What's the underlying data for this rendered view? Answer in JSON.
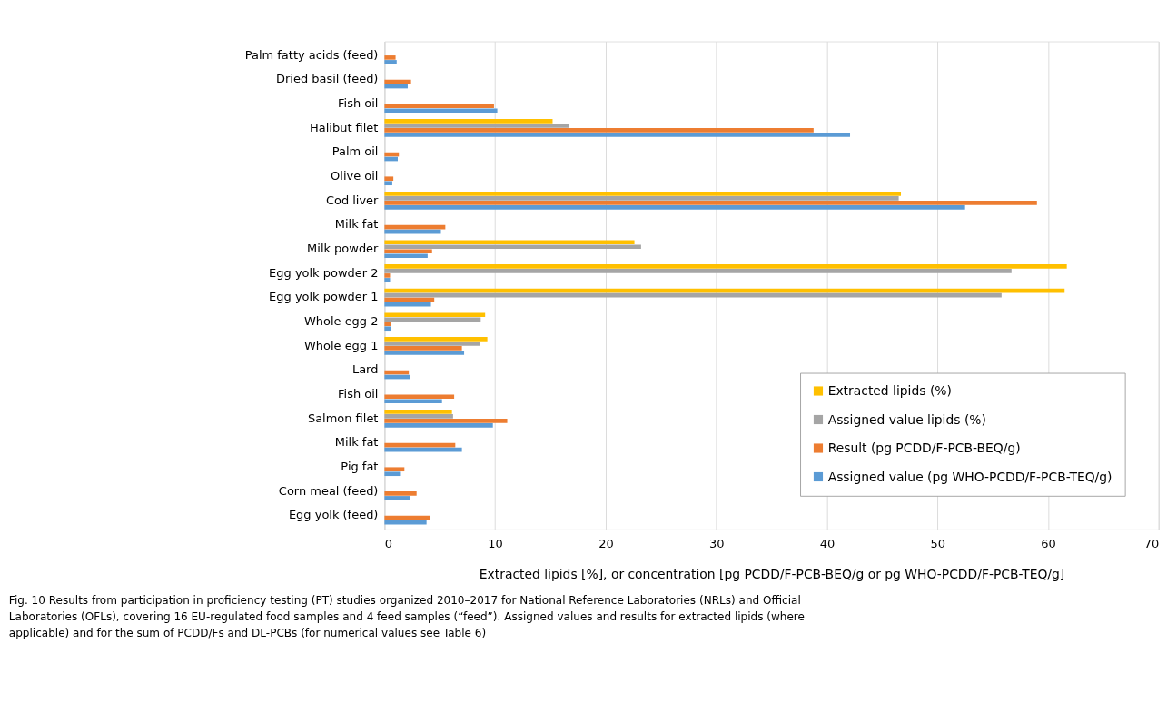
{
  "chart_data": {
    "type": "bar",
    "orientation": "horizontal",
    "categories": [
      "Palm fatty acids (feed)",
      "Dried basil (feed)",
      "Fish oil",
      "Halibut filet",
      "Palm oil",
      "Olive oil",
      "Cod liver",
      "Milk fat",
      "Milk powder",
      "Egg yolk powder 2",
      "Egg yolk powder 1",
      "Whole egg 2",
      "Whole egg 1",
      "Lard",
      "Fish oil",
      "Salmon filet",
      "Milk fat",
      "Pig fat",
      "Corn meal (feed)",
      "Egg yolk (feed)"
    ],
    "series": [
      {
        "name": "Extracted lipids (%)",
        "color": "#ffc000",
        "values": [
          null,
          null,
          null,
          15.2,
          null,
          null,
          46.7,
          null,
          22.6,
          61.7,
          61.5,
          9.1,
          9.3,
          null,
          null,
          6.1,
          null,
          null,
          null,
          null
        ]
      },
      {
        "name": "Assigned value lipids (%)",
        "color": "#a5a5a5",
        "values": [
          null,
          null,
          null,
          16.7,
          null,
          null,
          46.5,
          null,
          23.2,
          56.7,
          55.8,
          8.7,
          8.6,
          null,
          null,
          6.2,
          null,
          null,
          null,
          null
        ]
      },
      {
        "name": "Result (pg PCDD/F-PCB-BEQ/g)",
        "color": "#ed7d31",
        "values": [
          1.0,
          2.4,
          9.9,
          38.8,
          1.3,
          0.8,
          59.0,
          5.5,
          4.3,
          0.5,
          4.5,
          0.6,
          7.0,
          2.2,
          6.3,
          11.1,
          6.4,
          1.8,
          2.9,
          4.1
        ]
      },
      {
        "name": "Assigned value (pg WHO-PCDD/F-PCB-TEQ/g)",
        "color": "#5b9bd5",
        "values": [
          1.1,
          2.1,
          10.2,
          42.1,
          1.2,
          0.7,
          52.5,
          5.1,
          3.9,
          0.5,
          4.2,
          0.6,
          7.2,
          2.3,
          5.2,
          9.8,
          7.0,
          1.4,
          2.3,
          3.8
        ]
      }
    ],
    "xlabel": "Extracted lipids [%], or concentration [pg PCDD/F-PCB-BEQ/g or pg WHO-PCDD/F-PCB-TEQ/g]",
    "xlim": [
      0,
      70
    ],
    "xticks": [
      0,
      10,
      20,
      30,
      40,
      50,
      60,
      70
    ],
    "grid": "x",
    "legend": "bottom right",
    "annotations": [
      "Fig. 10 Results from participation in proficiency testing (PT) studies organized 2010–2017 for National Reference Laboratories (NRLs) and Official Laboratories (OFLs), covering 16 EU-regulated food samples and 4 feed samples (“feed”). Assigned values and results for extracted lipids (where applicable) and for the sum of PCDD/Fs and DL-PCBs (for numerical values see Table 6)"
    ]
  }
}
